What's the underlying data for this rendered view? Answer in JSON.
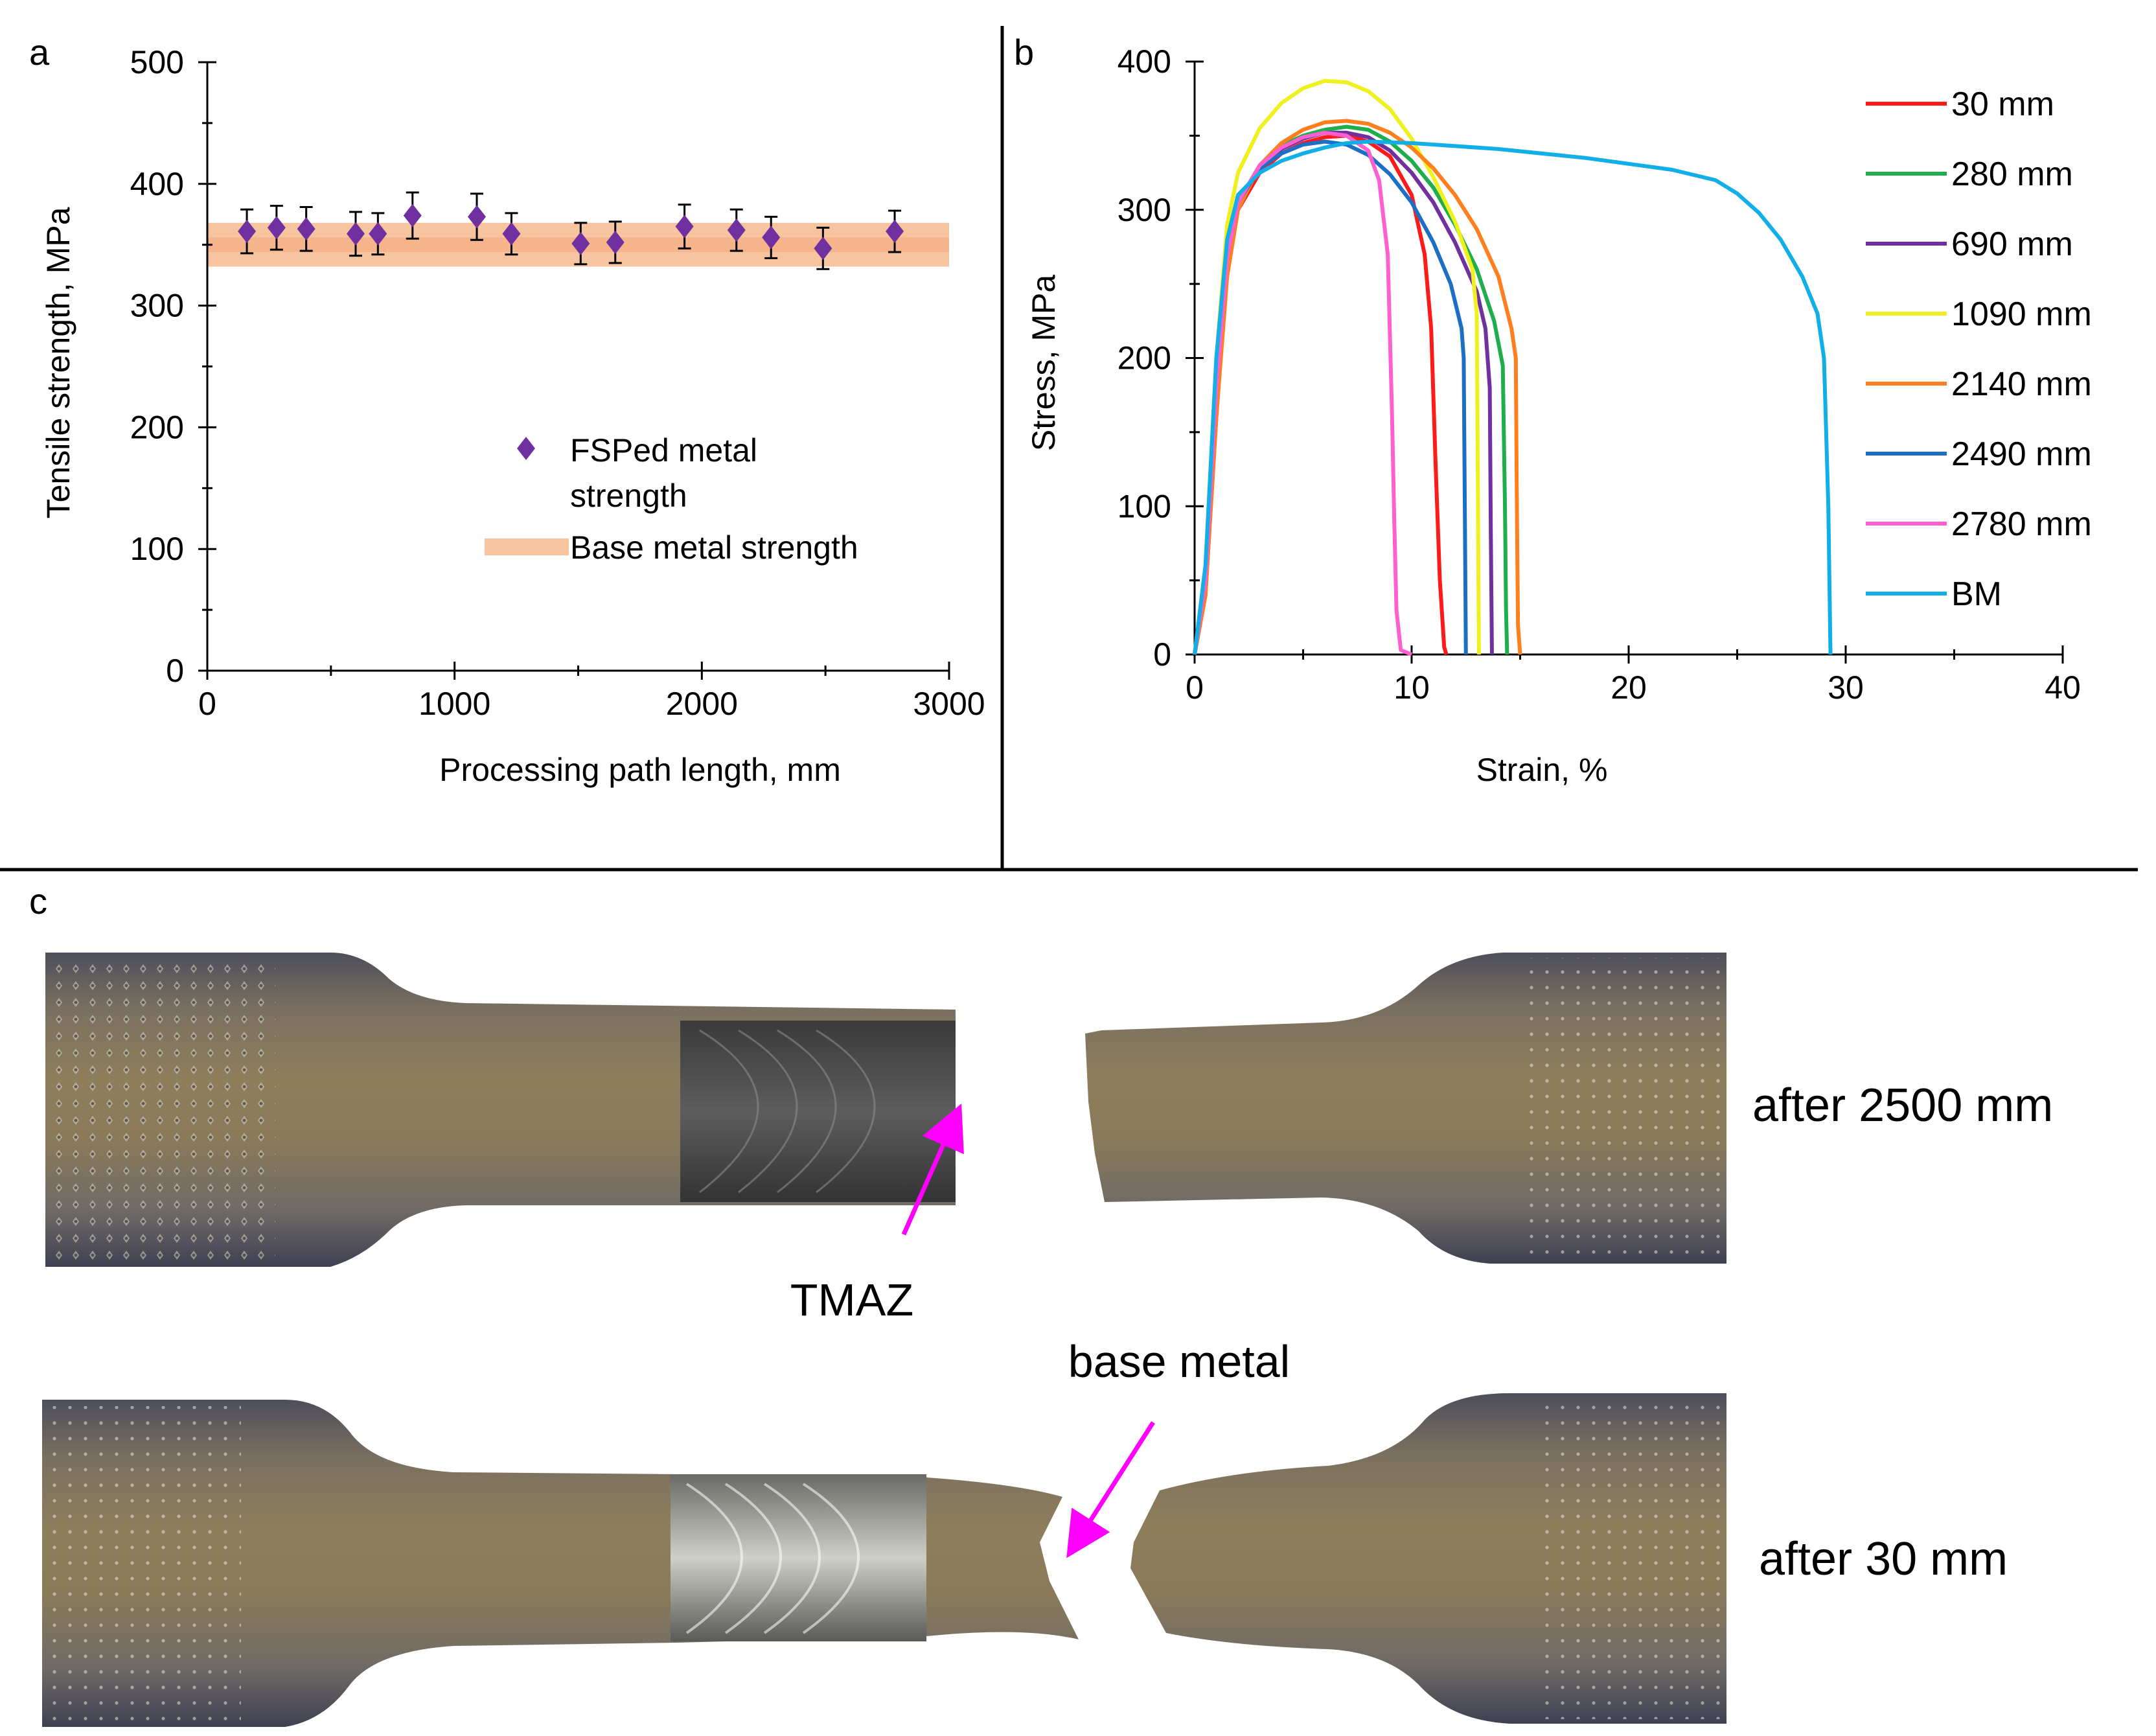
{
  "panels": {
    "a": "a",
    "b": "b",
    "c": "c"
  },
  "colors": {
    "marker": "#7030a0",
    "base_band": "#f7c4a0",
    "base_band_center": "#f3aa7e",
    "axis": "#000000"
  },
  "chart_data": [
    {
      "panel": "a",
      "type": "scatter",
      "title": "",
      "xlabel": "Processing path length, mm",
      "ylabel": "Tensile strength, MPa",
      "xlim": [
        0,
        3000
      ],
      "ylim": [
        0,
        500
      ],
      "xticks": [
        0,
        1000,
        2000,
        3000
      ],
      "yticks": [
        0,
        100,
        200,
        300,
        400,
        500
      ],
      "grid": false,
      "legend_position": "center-right",
      "series": [
        {
          "name": "FSPed metal strength",
          "legend_line1": "FSPed metal",
          "legend_line2": "strength",
          "color": "#7030a0",
          "marker": "diamond",
          "x": [
            160,
            280,
            400,
            600,
            690,
            830,
            1090,
            1230,
            1510,
            1650,
            1930,
            2140,
            2280,
            2490,
            2780
          ],
          "y": [
            361,
            364,
            363,
            359,
            359,
            374,
            373,
            359,
            351,
            352,
            365,
            362,
            356,
            347,
            361
          ],
          "error": [
            18,
            18,
            18,
            18,
            17,
            19,
            19,
            17,
            17,
            17,
            18,
            17,
            17,
            17,
            17
          ]
        },
        {
          "name": "Base metal strength",
          "type": "band",
          "color": "#f7c4a0",
          "y_low": 332,
          "y_high": 368
        }
      ]
    },
    {
      "panel": "b",
      "type": "line",
      "title": "",
      "xlabel": "Strain, %",
      "ylabel": "Stress, MPa",
      "xlim": [
        0,
        40
      ],
      "ylim": [
        0,
        400
      ],
      "xticks": [
        0,
        10,
        20,
        30,
        40
      ],
      "yticks": [
        0,
        100,
        200,
        300,
        400
      ],
      "grid": false,
      "legend_position": "right",
      "series": [
        {
          "name": "30 mm",
          "color": "#ff1a1a",
          "points": [
            [
              0,
              0
            ],
            [
              0.5,
              40
            ],
            [
              1,
              160
            ],
            [
              1.5,
              260
            ],
            [
              2,
              300
            ],
            [
              3,
              325
            ],
            [
              4,
              338
            ],
            [
              5,
              345
            ],
            [
              6,
              349
            ],
            [
              7,
              350
            ],
            [
              8,
              346
            ],
            [
              9,
              336
            ],
            [
              10,
              310
            ],
            [
              10.6,
              270
            ],
            [
              10.9,
              220
            ],
            [
              11.1,
              130
            ],
            [
              11.3,
              50
            ],
            [
              11.5,
              5
            ],
            [
              11.6,
              0
            ]
          ]
        },
        {
          "name": "280 mm",
          "color": "#1fae4b",
          "points": [
            [
              0,
              0
            ],
            [
              0.5,
              45
            ],
            [
              1,
              170
            ],
            [
              1.5,
              265
            ],
            [
              2,
              305
            ],
            [
              3,
              330
            ],
            [
              4,
              343
            ],
            [
              5,
              350
            ],
            [
              6,
              354
            ],
            [
              7,
              356
            ],
            [
              8,
              354
            ],
            [
              9,
              346
            ],
            [
              10,
              333
            ],
            [
              11,
              315
            ],
            [
              12,
              290
            ],
            [
              13,
              260
            ],
            [
              13.8,
              225
            ],
            [
              14.2,
              195
            ],
            [
              14.3,
              100
            ],
            [
              14.35,
              30
            ],
            [
              14.4,
              0
            ]
          ]
        },
        {
          "name": "690 mm",
          "color": "#7030a0",
          "points": [
            [
              0,
              0
            ],
            [
              0.5,
              45
            ],
            [
              1,
              170
            ],
            [
              1.5,
              265
            ],
            [
              2,
              303
            ],
            [
              3,
              328
            ],
            [
              4,
              341
            ],
            [
              5,
              348
            ],
            [
              6,
              352
            ],
            [
              7,
              352
            ],
            [
              8,
              349
            ],
            [
              9,
              340
            ],
            [
              10,
              325
            ],
            [
              11,
              305
            ],
            [
              12,
              278
            ],
            [
              13,
              245
            ],
            [
              13.4,
              220
            ],
            [
              13.6,
              180
            ],
            [
              13.65,
              80
            ],
            [
              13.7,
              0
            ]
          ]
        },
        {
          "name": "1090 mm",
          "color": "#f0f01e",
          "points": [
            [
              0,
              0
            ],
            [
              0.5,
              60
            ],
            [
              1,
              200
            ],
            [
              1.5,
              290
            ],
            [
              2,
              325
            ],
            [
              3,
              355
            ],
            [
              4,
              372
            ],
            [
              5,
              382
            ],
            [
              6,
              387
            ],
            [
              7,
              386
            ],
            [
              8,
              380
            ],
            [
              9,
              368
            ],
            [
              10,
              348
            ],
            [
              11,
              322
            ],
            [
              12,
              292
            ],
            [
              12.8,
              260
            ],
            [
              13,
              230
            ],
            [
              13.05,
              120
            ],
            [
              13.1,
              0
            ]
          ]
        },
        {
          "name": "2140 mm",
          "color": "#ff7f1e",
          "points": [
            [
              0,
              0
            ],
            [
              0.5,
              40
            ],
            [
              1,
              160
            ],
            [
              1.5,
              255
            ],
            [
              2,
              300
            ],
            [
              3,
              330
            ],
            [
              4,
              345
            ],
            [
              5,
              354
            ],
            [
              6,
              359
            ],
            [
              7,
              360
            ],
            [
              8,
              358
            ],
            [
              9,
              352
            ],
            [
              10,
              342
            ],
            [
              11,
              328
            ],
            [
              12,
              310
            ],
            [
              13,
              287
            ],
            [
              14,
              255
            ],
            [
              14.6,
              220
            ],
            [
              14.8,
              200
            ],
            [
              14.85,
              100
            ],
            [
              14.9,
              20
            ],
            [
              15,
              0
            ]
          ]
        },
        {
          "name": "2490 mm",
          "color": "#1c6fc4",
          "points": [
            [
              0,
              0
            ],
            [
              0.5,
              50
            ],
            [
              1,
              180
            ],
            [
              1.5,
              270
            ],
            [
              2,
              305
            ],
            [
              3,
              328
            ],
            [
              4,
              338
            ],
            [
              5,
              344
            ],
            [
              6,
              346
            ],
            [
              7,
              344
            ],
            [
              8,
              337
            ],
            [
              9,
              324
            ],
            [
              10,
              305
            ],
            [
              11,
              278
            ],
            [
              11.8,
              250
            ],
            [
              12.3,
              220
            ],
            [
              12.4,
              200
            ],
            [
              12.45,
              100
            ],
            [
              12.5,
              0
            ]
          ]
        },
        {
          "name": "2780 mm",
          "color": "#ff5fcf",
          "points": [
            [
              0,
              0
            ],
            [
              0.5,
              50
            ],
            [
              1,
              180
            ],
            [
              1.5,
              268
            ],
            [
              2,
              305
            ],
            [
              3,
              330
            ],
            [
              4,
              342
            ],
            [
              5,
              349
            ],
            [
              6,
              352
            ],
            [
              7,
              350
            ],
            [
              8,
              340
            ],
            [
              8.5,
              320
            ],
            [
              8.9,
              270
            ],
            [
              9.1,
              160
            ],
            [
              9.2,
              90
            ],
            [
              9.3,
              30
            ],
            [
              9.5,
              3
            ],
            [
              10,
              0
            ]
          ]
        },
        {
          "name": "BM",
          "color": "#11aee8",
          "points": [
            [
              0,
              0
            ],
            [
              0.5,
              60
            ],
            [
              1,
              200
            ],
            [
              1.5,
              280
            ],
            [
              2,
              310
            ],
            [
              3,
              325
            ],
            [
              4,
              333
            ],
            [
              5,
              338
            ],
            [
              6,
              342
            ],
            [
              7,
              345
            ],
            [
              8,
              346
            ],
            [
              10,
              345
            ],
            [
              14,
              341
            ],
            [
              18,
              335
            ],
            [
              22,
              327
            ],
            [
              24,
              320
            ],
            [
              25,
              311
            ],
            [
              26,
              298
            ],
            [
              27,
              280
            ],
            [
              28,
              255
            ],
            [
              28.7,
              230
            ],
            [
              29.0,
              200
            ],
            [
              29.2,
              100
            ],
            [
              29.3,
              0
            ]
          ]
        }
      ]
    }
  ],
  "photo": {
    "specimen_top_label": "after 2500 mm",
    "specimen_bottom_label": "after 30 mm",
    "annotation_tmaz": "TMAZ",
    "annotation_base_metal": "base metal"
  }
}
